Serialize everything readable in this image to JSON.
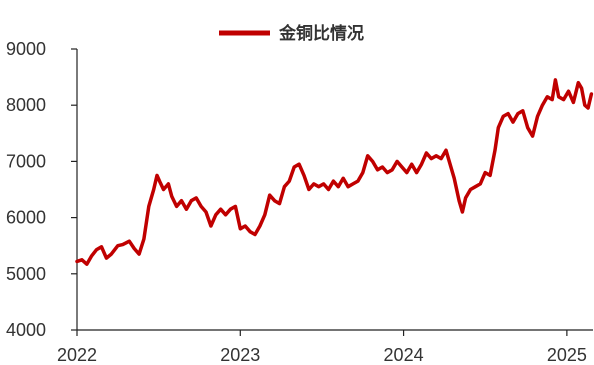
{
  "chart_data": {
    "type": "line",
    "legend": {
      "position": "top-center",
      "label": "金铜比情况"
    },
    "xlabel": "",
    "ylabel": "",
    "grid": false,
    "xlim": [
      2022.0,
      2025.16
    ],
    "ylim": [
      4000,
      9000
    ],
    "x_ticks": [
      {
        "value": 2022,
        "label": "2022"
      },
      {
        "value": 2023,
        "label": "2023"
      },
      {
        "value": 2024,
        "label": "2024"
      },
      {
        "value": 2025,
        "label": "2025"
      }
    ],
    "y_ticks": [
      {
        "value": 4000,
        "label": "4000"
      },
      {
        "value": 5000,
        "label": "5000"
      },
      {
        "value": 6000,
        "label": "6000"
      },
      {
        "value": 7000,
        "label": "7000"
      },
      {
        "value": 8000,
        "label": "8000"
      },
      {
        "value": 9000,
        "label": "9000"
      }
    ],
    "series": [
      {
        "name": "金铜比情况",
        "color": "#c00000",
        "points": [
          [
            2022.0,
            5220
          ],
          [
            2022.03,
            5250
          ],
          [
            2022.06,
            5170
          ],
          [
            2022.09,
            5320
          ],
          [
            2022.12,
            5430
          ],
          [
            2022.15,
            5480
          ],
          [
            2022.18,
            5280
          ],
          [
            2022.21,
            5350
          ],
          [
            2022.25,
            5500
          ],
          [
            2022.28,
            5520
          ],
          [
            2022.32,
            5580
          ],
          [
            2022.35,
            5450
          ],
          [
            2022.38,
            5350
          ],
          [
            2022.41,
            5620
          ],
          [
            2022.44,
            6200
          ],
          [
            2022.47,
            6500
          ],
          [
            2022.49,
            6750
          ],
          [
            2022.51,
            6620
          ],
          [
            2022.53,
            6500
          ],
          [
            2022.56,
            6600
          ],
          [
            2022.58,
            6380
          ],
          [
            2022.61,
            6200
          ],
          [
            2022.64,
            6300
          ],
          [
            2022.67,
            6150
          ],
          [
            2022.7,
            6300
          ],
          [
            2022.73,
            6350
          ],
          [
            2022.76,
            6200
          ],
          [
            2022.79,
            6100
          ],
          [
            2022.82,
            5850
          ],
          [
            2022.85,
            6050
          ],
          [
            2022.88,
            6150
          ],
          [
            2022.91,
            6050
          ],
          [
            2022.94,
            6150
          ],
          [
            2022.97,
            6200
          ],
          [
            2023.0,
            5800
          ],
          [
            2023.03,
            5850
          ],
          [
            2023.06,
            5750
          ],
          [
            2023.09,
            5700
          ],
          [
            2023.12,
            5850
          ],
          [
            2023.15,
            6050
          ],
          [
            2023.18,
            6400
          ],
          [
            2023.21,
            6300
          ],
          [
            2023.24,
            6250
          ],
          [
            2023.27,
            6550
          ],
          [
            2023.3,
            6650
          ],
          [
            2023.33,
            6900
          ],
          [
            2023.36,
            6950
          ],
          [
            2023.39,
            6750
          ],
          [
            2023.42,
            6500
          ],
          [
            2023.45,
            6600
          ],
          [
            2023.48,
            6550
          ],
          [
            2023.51,
            6600
          ],
          [
            2023.54,
            6500
          ],
          [
            2023.57,
            6650
          ],
          [
            2023.6,
            6550
          ],
          [
            2023.63,
            6700
          ],
          [
            2023.66,
            6550
          ],
          [
            2023.69,
            6600
          ],
          [
            2023.72,
            6650
          ],
          [
            2023.75,
            6800
          ],
          [
            2023.78,
            7100
          ],
          [
            2023.81,
            7000
          ],
          [
            2023.84,
            6850
          ],
          [
            2023.87,
            6900
          ],
          [
            2023.9,
            6800
          ],
          [
            2023.93,
            6850
          ],
          [
            2023.96,
            7000
          ],
          [
            2023.99,
            6900
          ],
          [
            2024.02,
            6800
          ],
          [
            2024.05,
            6950
          ],
          [
            2024.08,
            6800
          ],
          [
            2024.11,
            6950
          ],
          [
            2024.14,
            7150
          ],
          [
            2024.17,
            7050
          ],
          [
            2024.2,
            7100
          ],
          [
            2024.23,
            7050
          ],
          [
            2024.26,
            7200
          ],
          [
            2024.29,
            6900
          ],
          [
            2024.31,
            6700
          ],
          [
            2024.34,
            6300
          ],
          [
            2024.36,
            6100
          ],
          [
            2024.38,
            6350
          ],
          [
            2024.41,
            6500
          ],
          [
            2024.44,
            6550
          ],
          [
            2024.47,
            6600
          ],
          [
            2024.5,
            6800
          ],
          [
            2024.53,
            6750
          ],
          [
            2024.56,
            7200
          ],
          [
            2024.58,
            7600
          ],
          [
            2024.61,
            7800
          ],
          [
            2024.64,
            7850
          ],
          [
            2024.67,
            7700
          ],
          [
            2024.7,
            7850
          ],
          [
            2024.73,
            7900
          ],
          [
            2024.76,
            7600
          ],
          [
            2024.79,
            7450
          ],
          [
            2024.82,
            7800
          ],
          [
            2024.85,
            8000
          ],
          [
            2024.88,
            8150
          ],
          [
            2024.91,
            8100
          ],
          [
            2024.93,
            8450
          ],
          [
            2024.95,
            8150
          ],
          [
            2024.98,
            8100
          ],
          [
            2025.01,
            8250
          ],
          [
            2025.04,
            8050
          ],
          [
            2025.07,
            8400
          ],
          [
            2025.09,
            8300
          ],
          [
            2025.11,
            8000
          ],
          [
            2025.13,
            7950
          ],
          [
            2025.15,
            8200
          ]
        ]
      }
    ]
  }
}
